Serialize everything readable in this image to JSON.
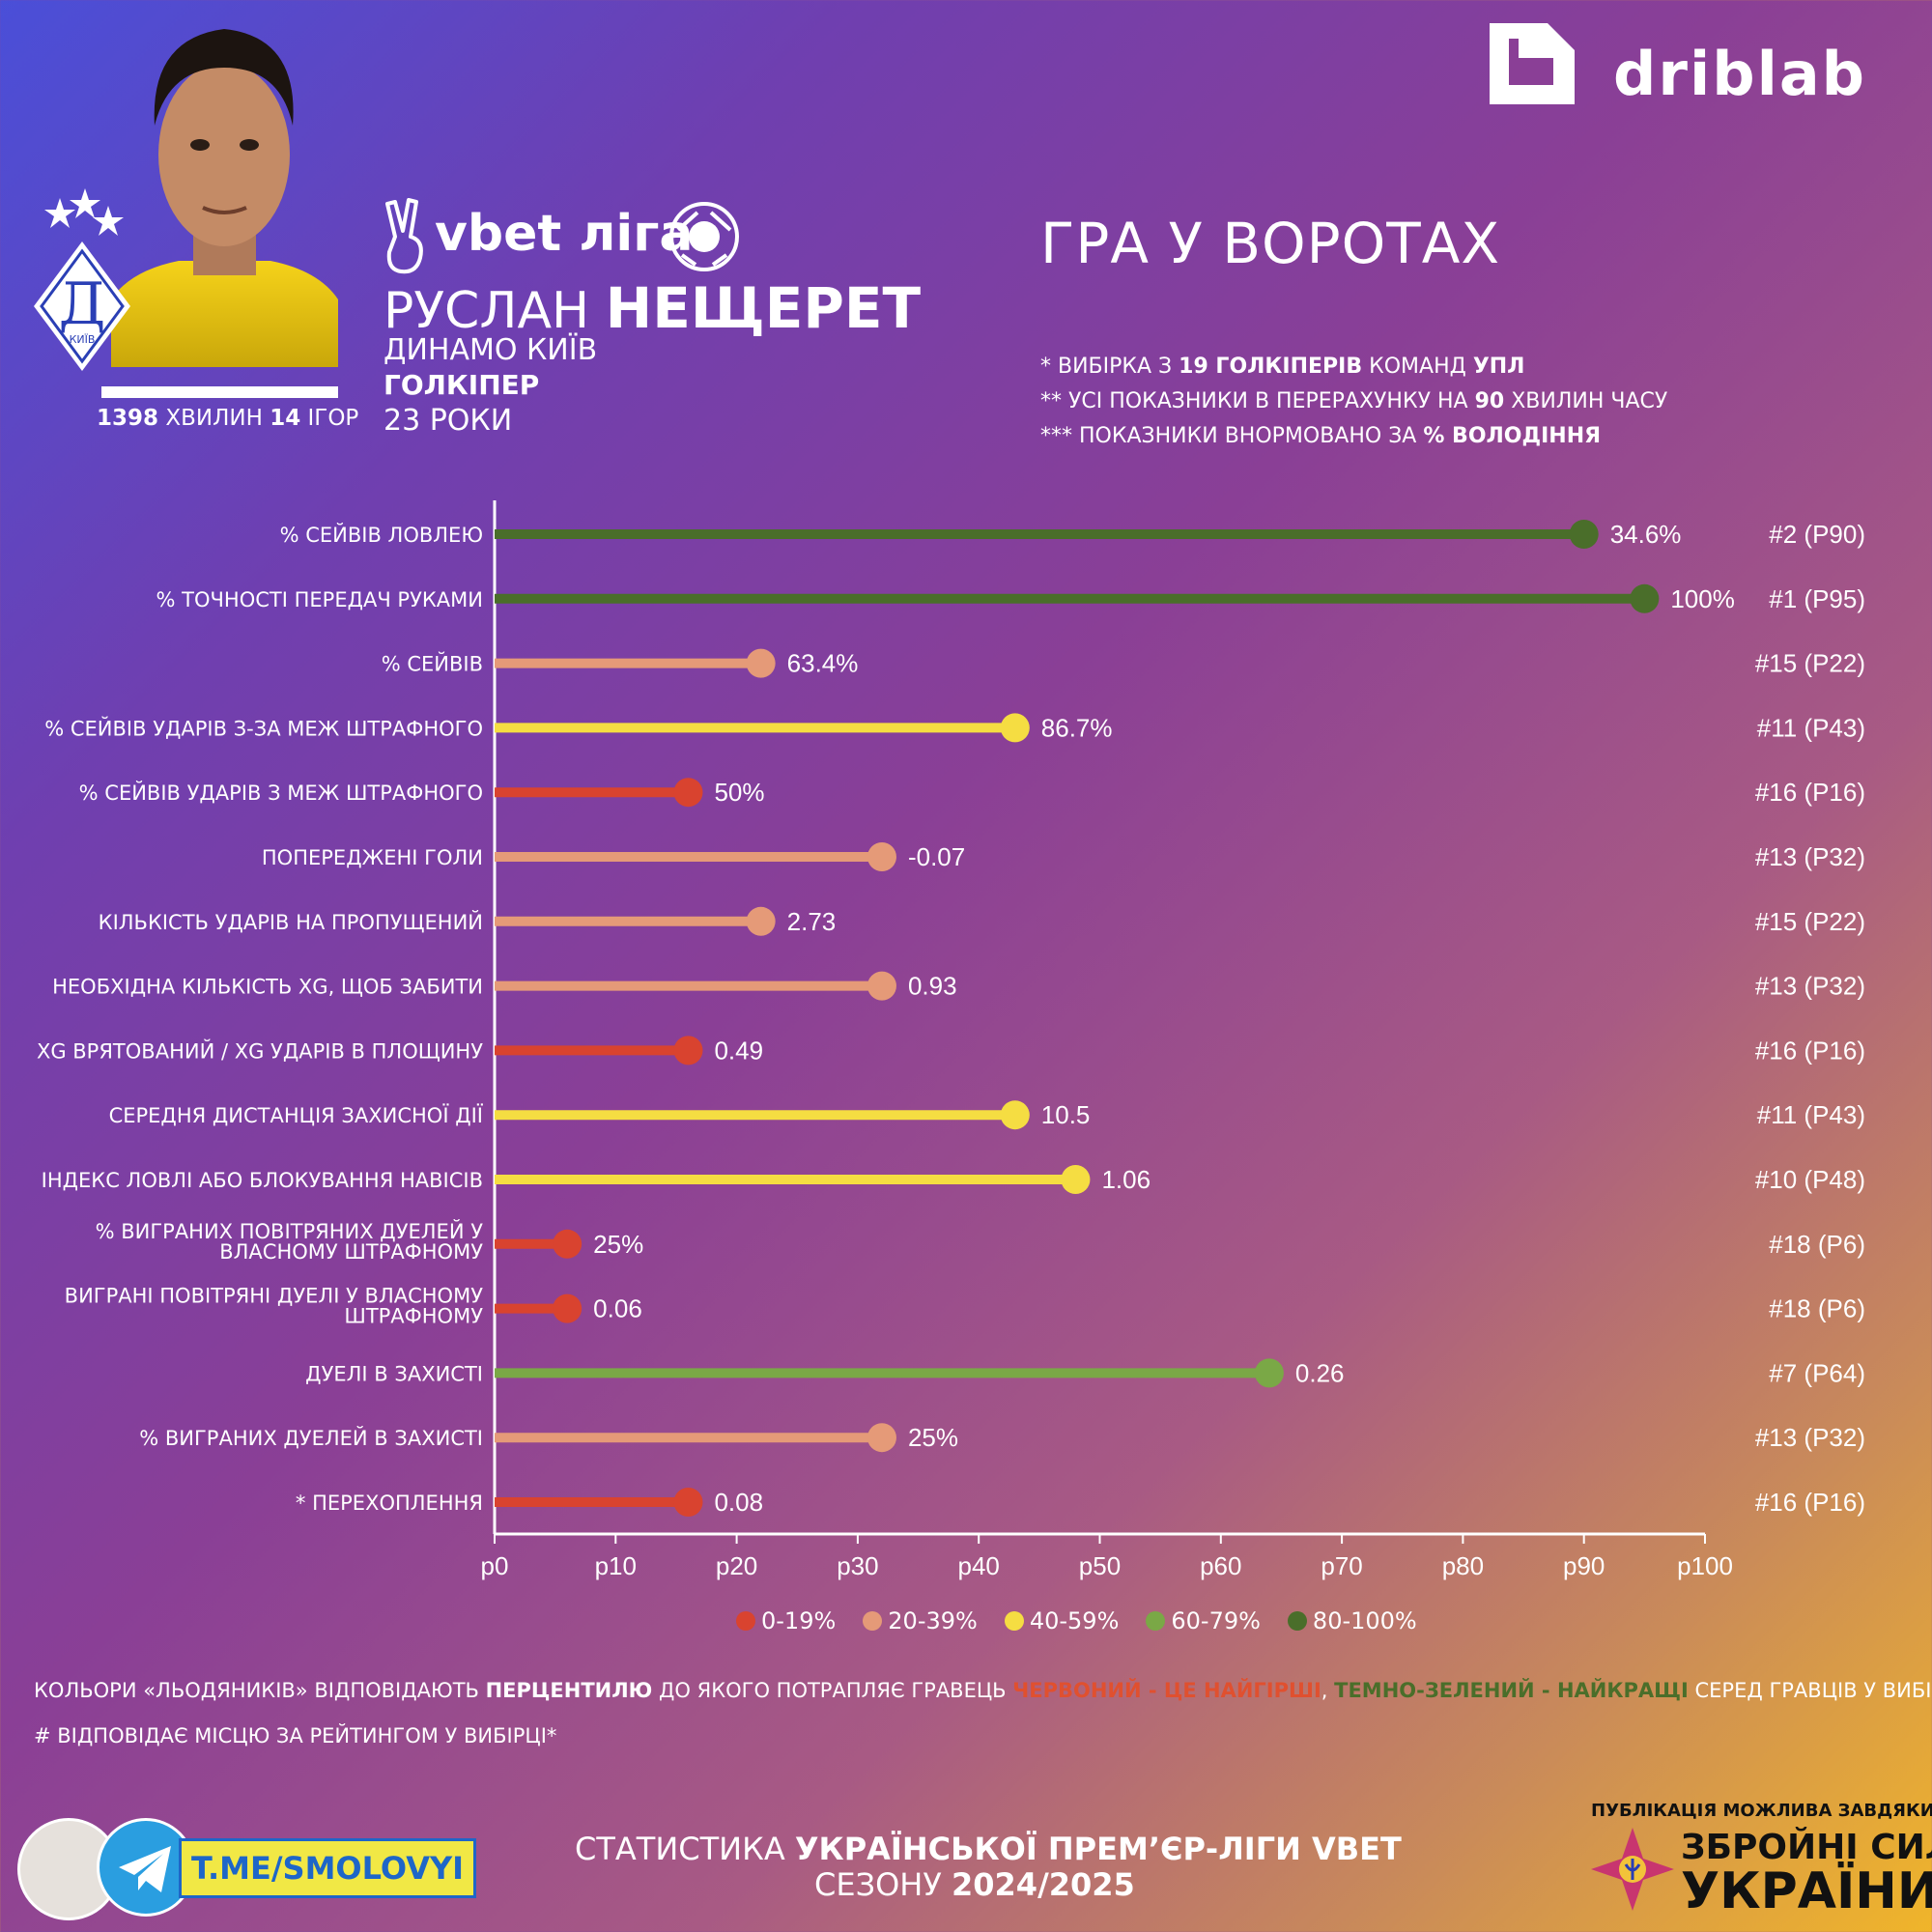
{
  "brand": {
    "name": "driblab"
  },
  "player": {
    "first_name": "РУСЛАН",
    "last_name": "НЕЩЕРЕТ",
    "club": "ДИНАМО КИЇВ",
    "position": "ГОЛКІПЕР",
    "age": "23 РОКИ",
    "minutes_value": "1398",
    "minutes_label": "ХВИЛИН",
    "games_value": "14",
    "games_label": "ІГОР"
  },
  "club_crest_text": "КИЇВ",
  "league": {
    "name": "vbet ліга"
  },
  "section_title": "ГРА У ВОРОТАХ",
  "notes": {
    "line1_pre": "* ВИБІРКА З ",
    "line1_bold": "19 ГОЛКІПЕРІВ",
    "line1_mid": " КОМАНД ",
    "line1_bold2": "УПЛ",
    "line2_pre": "** УСІ ПОКАЗНИКИ В ПЕРЕРАХУНКУ НА ",
    "line2_bold": "90",
    "line2_post": " ХВИЛИН ЧАСУ",
    "line3_pre": "*** ПОКАЗНИКИ ВНОРМОВАНО ЗА ",
    "line3_bold": "% ВОЛОДІННЯ"
  },
  "colors": {
    "p0_19": "#d9432f",
    "p20_39": "#e59a78",
    "p40_59": "#f5dd42",
    "p60_79": "#7aa846",
    "p80_100": "#4a6e2a"
  },
  "chart_data": {
    "type": "lollipop",
    "xlim": [
      0,
      100
    ],
    "x_ticks": [
      "p0",
      "p10",
      "p20",
      "p30",
      "p40",
      "p50",
      "p60",
      "p70",
      "p80",
      "p90",
      "p100"
    ],
    "legend": [
      "0-19%",
      "20-39%",
      "40-59%",
      "60-79%",
      "80-100%"
    ],
    "rows": [
      {
        "label": [
          "% СЕЙВІВ ЛОВЛЕЮ"
        ],
        "percentile": 90,
        "value": "34.6%",
        "rank": "#2 (P90)"
      },
      {
        "label": [
          "% ТОЧНОСТІ ПЕРЕДАЧ РУКАМИ"
        ],
        "percentile": 95,
        "value": "100%",
        "rank": "#1 (P95)"
      },
      {
        "label": [
          "% СЕЙВІВ"
        ],
        "percentile": 22,
        "value": "63.4%",
        "rank": "#15 (P22)"
      },
      {
        "label": [
          "% СЕЙВІВ УДАРІВ З-ЗА МЕЖ ШТРАФНОГО"
        ],
        "percentile": 43,
        "value": "86.7%",
        "rank": "#11 (P43)"
      },
      {
        "label": [
          "% СЕЙВІВ УДАРІВ З МЕЖ ШТРАФНОГО"
        ],
        "percentile": 16,
        "value": "50%",
        "rank": "#16 (P16)"
      },
      {
        "label": [
          "ПОПЕРЕДЖЕНІ ГОЛИ"
        ],
        "percentile": 32,
        "value": "-0.07",
        "rank": "#13 (P32)"
      },
      {
        "label": [
          "КІЛЬКІСТЬ УДАРІВ НА ПРОПУЩЕНИЙ"
        ],
        "percentile": 22,
        "value": "2.73",
        "rank": "#15 (P22)"
      },
      {
        "label": [
          "НЕОБХІДНА КІЛЬКІСТЬ XG, ЩОБ ЗАБИТИ"
        ],
        "percentile": 32,
        "value": "0.93",
        "rank": "#13 (P32)"
      },
      {
        "label": [
          "XG ВРЯТОВАНИЙ / XG УДАРІВ В ПЛОЩИНУ"
        ],
        "percentile": 16,
        "value": "0.49",
        "rank": "#16 (P16)"
      },
      {
        "label": [
          "СЕРЕДНЯ ДИСТАНЦІЯ ЗАХИСНОЇ ДІЇ"
        ],
        "percentile": 43,
        "value": "10.5",
        "rank": "#11 (P43)"
      },
      {
        "label": [
          "ІНДЕКС ЛОВЛІ АБО БЛОКУВАННЯ НАВІСІВ"
        ],
        "percentile": 48,
        "value": "1.06",
        "rank": "#10 (P48)"
      },
      {
        "label": [
          "% ВИГРАНИХ  ПОВІТРЯНИХ ДУЕЛЕЙ У",
          "ВЛАСНОМУ ШТРАФНОМУ"
        ],
        "percentile": 6,
        "value": "25%",
        "rank": "#18 (P6)"
      },
      {
        "label": [
          "ВИГРАНІ ПОВІТРЯНІ  ДУЕЛІ У ВЛАСНОМУ",
          "ШТРАФНОМУ"
        ],
        "percentile": 6,
        "value": "0.06",
        "rank": "#18 (P6)"
      },
      {
        "label": [
          "ДУЕЛІ В ЗАХИСТІ"
        ],
        "percentile": 64,
        "value": "0.26",
        "rank": "#7 (P64)"
      },
      {
        "label": [
          "% ВИГРАНИХ ДУЕЛЕЙ В ЗАХИСТІ"
        ],
        "percentile": 32,
        "value": "25%",
        "rank": "#13 (P32)"
      },
      {
        "label": [
          "*   ПЕРЕХОПЛЕННЯ"
        ],
        "percentile": 16,
        "value": "0.08",
        "rank": "#16 (P16)"
      }
    ]
  },
  "footnotes": {
    "line1_pre": "КОЛЬОРИ «ЛЬОДЯНИКІВ» ВІДПОВІДАЮТЬ ",
    "line1_bold": "ПЕРЦЕНТИЛЮ",
    "line1_mid": " ДО ЯКОГО ПОТРАПЛЯЄ ГРАВЕЦЬ ",
    "line1_red": "ЧЕРВОНИЙ - ЦЕ НАЙГІРШІ",
    "line1_comma": ", ",
    "line1_green": "ТЕМНО-ЗЕЛЕНИЙ - НАЙКРАЩІ",
    "line1_post": " СЕРЕД ГРАВЦІВ У ВИБІРЦІ",
    "line2": "# ВІДПОВІДАЄ МІСЦЮ ЗА РЕЙТИНГОМ У ВИБІРЦІ*"
  },
  "footer": {
    "title_pre": "СТАТИСТИКА ",
    "title_bold": "УКРАЇНСЬКОЇ ПРЕМ’ЄР-ЛІГИ VBET",
    "season_pre": "СЕЗОНУ ",
    "season_bold": "2024/2025",
    "telegram": "T.ME/SMOLOVYI",
    "support": "ПУБЛІКАЦІЯ МОЖЛИВА ЗАВДЯКИ:",
    "zsu_line1": "ЗБРОЙНІ СИЛИ",
    "zsu_line2": "УКРАЇНИ"
  }
}
